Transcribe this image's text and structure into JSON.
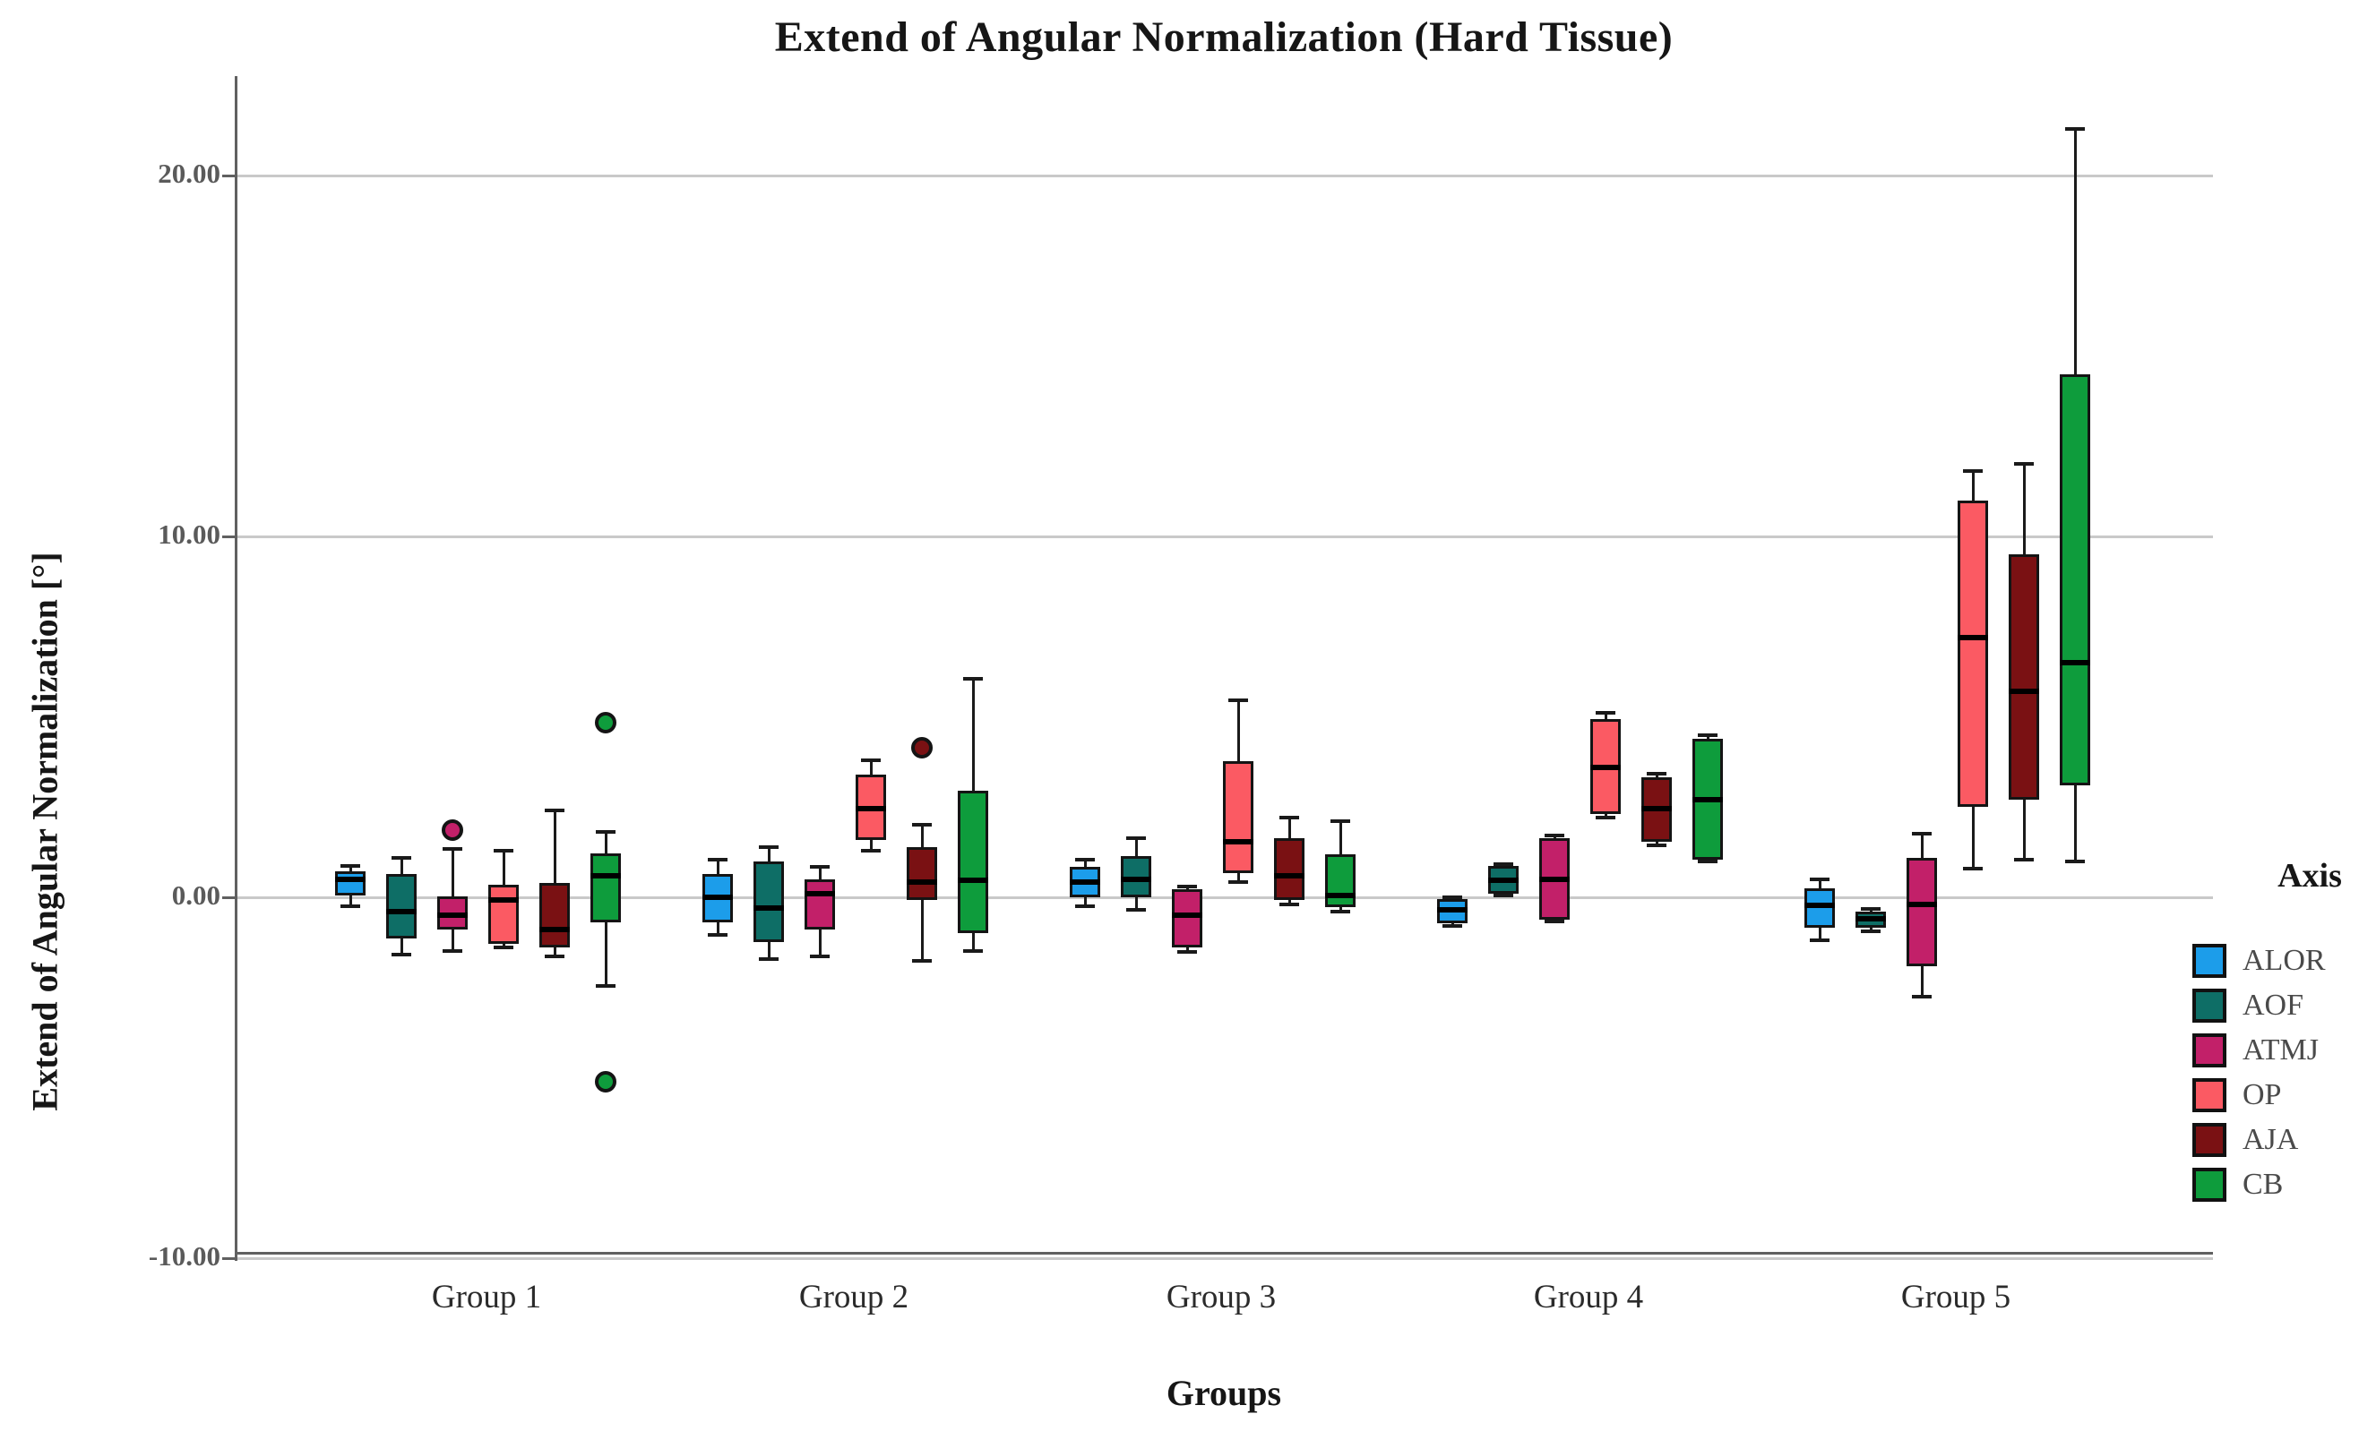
{
  "figure": {
    "title": "Extend of Angular Normalization (Hard Tissue)",
    "y_axis_title": "Extend of Angular Normalization [°]",
    "x_axis_title": "Groups",
    "legend_title": "Axis"
  },
  "chart_data": {
    "type": "boxplot",
    "title": "Extend of Angular Normalization (Hard Tissue)",
    "xlabel": "Groups",
    "ylabel": "Extend of Angular Normalization [°]",
    "ylim": [
      -10,
      22.8
    ],
    "grid": "horizontal",
    "y_ticks": [
      {
        "value": 20,
        "label": "20.00"
      },
      {
        "value": 10,
        "label": "10.00"
      },
      {
        "value": 0,
        "label": "0.00"
      },
      {
        "value": -10,
        "label": "-10.00"
      }
    ],
    "categories": [
      "Group 1",
      "Group 2",
      "Group 3",
      "Group 4",
      "Group 5"
    ],
    "legend": {
      "title": "Axis",
      "position": "right",
      "entries": [
        "ALOR",
        "AOF",
        "ATMJ",
        "OP",
        "AJA",
        "CB"
      ]
    },
    "series": [
      {
        "name": "ALOR",
        "color": "#1C9DEA",
        "boxes": [
          {
            "min": -0.25,
            "q1": 0.05,
            "median": 0.5,
            "q3": 0.72,
            "max": 0.87,
            "outliers": []
          },
          {
            "min": -1.05,
            "q1": -0.7,
            "median": 0.0,
            "q3": 0.65,
            "max": 1.05,
            "outliers": []
          },
          {
            "min": -0.25,
            "q1": 0.0,
            "median": 0.42,
            "q3": 0.84,
            "max": 1.05,
            "outliers": []
          },
          {
            "min": -0.8,
            "q1": -0.72,
            "median": -0.35,
            "q3": -0.06,
            "max": 0.0,
            "outliers": []
          },
          {
            "min": -1.2,
            "q1": -0.85,
            "median": -0.22,
            "q3": 0.25,
            "max": 0.5,
            "outliers": []
          }
        ]
      },
      {
        "name": "AOF",
        "color": "#0E6E66",
        "boxes": [
          {
            "min": -1.6,
            "q1": -1.15,
            "median": -0.4,
            "q3": 0.65,
            "max": 1.1,
            "outliers": []
          },
          {
            "min": -1.7,
            "q1": -1.25,
            "median": -0.3,
            "q3": 1.0,
            "max": 1.4,
            "outliers": []
          },
          {
            "min": -0.35,
            "q1": 0.0,
            "median": 0.5,
            "q3": 1.15,
            "max": 1.65,
            "outliers": []
          },
          {
            "min": 0.05,
            "q1": 0.1,
            "median": 0.47,
            "q3": 0.87,
            "max": 0.92,
            "outliers": []
          },
          {
            "min": -0.95,
            "q1": -0.85,
            "median": -0.6,
            "q3": -0.4,
            "max": -0.33,
            "outliers": []
          }
        ]
      },
      {
        "name": "ATMJ",
        "color": "#C22069",
        "boxes": [
          {
            "min": -1.5,
            "q1": -0.9,
            "median": -0.5,
            "q3": 0.02,
            "max": 1.35,
            "outliers": [
              1.85
            ]
          },
          {
            "min": -1.65,
            "q1": -0.9,
            "median": 0.1,
            "q3": 0.5,
            "max": 0.85,
            "outliers": []
          },
          {
            "min": -1.52,
            "q1": -1.4,
            "median": -0.5,
            "q3": 0.22,
            "max": 0.3,
            "outliers": []
          },
          {
            "min": -0.66,
            "q1": -0.62,
            "median": 0.5,
            "q3": 1.65,
            "max": 1.7,
            "outliers": []
          },
          {
            "min": -2.75,
            "q1": -1.9,
            "median": -0.2,
            "q3": 1.1,
            "max": 1.75,
            "outliers": []
          }
        ]
      },
      {
        "name": "OP",
        "color": "#FB5A63",
        "boxes": [
          {
            "min": -1.38,
            "q1": -1.28,
            "median": -0.07,
            "q3": 0.35,
            "max": 1.3,
            "outliers": []
          },
          {
            "min": 1.3,
            "q1": 1.6,
            "median": 2.45,
            "q3": 3.4,
            "max": 3.8,
            "outliers": []
          },
          {
            "min": 0.42,
            "q1": 0.67,
            "median": 1.55,
            "q3": 3.77,
            "max": 5.45,
            "outliers": []
          },
          {
            "min": 2.2,
            "q1": 2.3,
            "median": 3.6,
            "q3": 4.95,
            "max": 5.1,
            "outliers": []
          },
          {
            "min": 0.8,
            "q1": 2.5,
            "median": 7.2,
            "q3": 11.0,
            "max": 11.8,
            "outliers": []
          }
        ]
      },
      {
        "name": "AJA",
        "color": "#7A1113",
        "boxes": [
          {
            "min": -1.65,
            "q1": -1.4,
            "median": -0.9,
            "q3": 0.4,
            "max": 2.4,
            "outliers": []
          },
          {
            "min": -1.75,
            "q1": -0.08,
            "median": 0.42,
            "q3": 1.4,
            "max": 2.0,
            "outliers": [
              4.15
            ]
          },
          {
            "min": -0.2,
            "q1": -0.08,
            "median": 0.6,
            "q3": 1.65,
            "max": 2.2,
            "outliers": []
          },
          {
            "min": 1.45,
            "q1": 1.55,
            "median": 2.45,
            "q3": 3.33,
            "max": 3.42,
            "outliers": []
          },
          {
            "min": 1.05,
            "q1": 2.7,
            "median": 5.7,
            "q3": 9.5,
            "max": 12.0,
            "outliers": []
          }
        ]
      },
      {
        "name": "CB",
        "color": "#0E9C3C",
        "boxes": [
          {
            "min": -2.45,
            "q1": -0.7,
            "median": 0.6,
            "q3": 1.22,
            "max": 1.8,
            "outliers": [
              4.85,
              -5.1
            ]
          },
          {
            "min": -1.5,
            "q1": -1.0,
            "median": 0.47,
            "q3": 2.95,
            "max": 6.05,
            "outliers": []
          },
          {
            "min": -0.4,
            "q1": -0.27,
            "median": 0.05,
            "q3": 1.2,
            "max": 2.1,
            "outliers": []
          },
          {
            "min": 1.0,
            "q1": 1.05,
            "median": 2.7,
            "q3": 4.4,
            "max": 4.5,
            "outliers": []
          },
          {
            "min": 1.0,
            "q1": 3.1,
            "median": 6.5,
            "q3": 14.5,
            "max": 21.3,
            "outliers": []
          }
        ]
      }
    ]
  }
}
